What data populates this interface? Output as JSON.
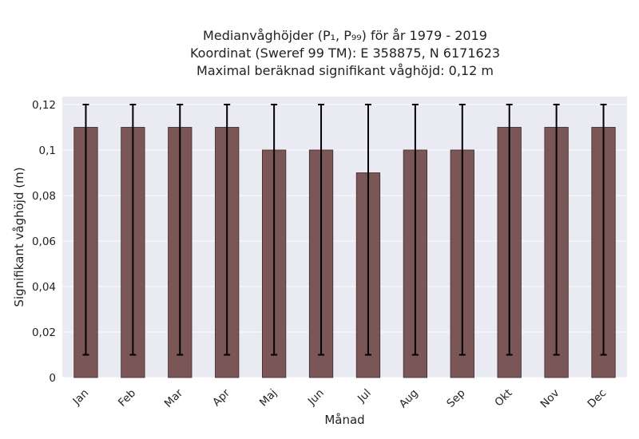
{
  "title_lines": [
    "Medianvåghöjder (P₁, P₉₉) för år 1979 - 2019",
    "Koordinat (Sweref 99 TM): E 358875, N 6171623",
    "Maximal beräknad signifikant våghöjd: 0,12 m"
  ],
  "colors": {
    "bar": "#7a5656",
    "bar_edge": "#3d2a2a",
    "plot_background": "#eaeaf2",
    "grid": "#ffffff",
    "error_bar": "#000000"
  },
  "chart_data": {
    "type": "bar",
    "xlabel": "Månad",
    "ylabel": "Signifikant våghöjd (m)",
    "categories": [
      "Jan",
      "Feb",
      "Mar",
      "Apr",
      "Maj",
      "Jun",
      "Jul",
      "Aug",
      "Sep",
      "Okt",
      "Nov",
      "Dec"
    ],
    "values": [
      0.11,
      0.11,
      0.11,
      0.11,
      0.1,
      0.1,
      0.09,
      0.1,
      0.1,
      0.11,
      0.11,
      0.11
    ],
    "error_low": [
      0.01,
      0.01,
      0.01,
      0.01,
      0.01,
      0.01,
      0.01,
      0.01,
      0.01,
      0.01,
      0.01,
      0.01
    ],
    "error_high": [
      0.12,
      0.12,
      0.12,
      0.12,
      0.12,
      0.12,
      0.12,
      0.12,
      0.12,
      0.12,
      0.12,
      0.12
    ],
    "ylim": [
      0,
      0.1235
    ],
    "yticks": [
      0,
      0.02,
      0.04,
      0.06,
      0.08,
      0.1,
      0.12
    ],
    "ytick_labels": [
      "0",
      "0,02",
      "0,04",
      "0,06",
      "0,08",
      "0,1",
      "0,12"
    ],
    "grid": true,
    "legend": "none"
  }
}
